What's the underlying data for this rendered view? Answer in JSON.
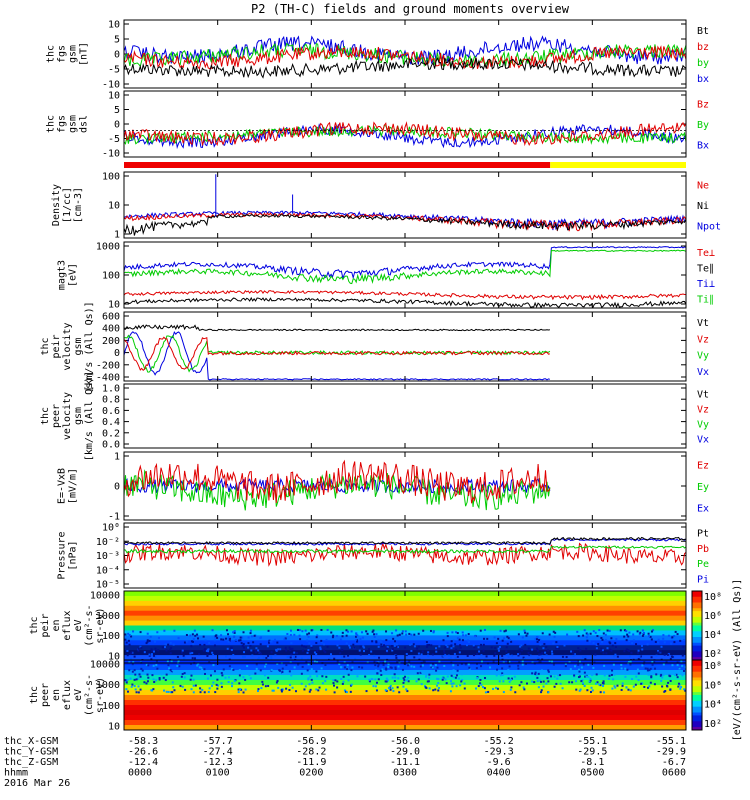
{
  "title": "P2 (TH-C) fields and ground moments overview",
  "chart_data": {
    "type": "line",
    "title": "P2 (TH-C) fields and ground moments overview",
    "x_ticks": [
      "0000",
      "0100",
      "0200",
      "0300",
      "0400",
      "0500",
      "0600"
    ],
    "x_range_hours": [
      0,
      6
    ],
    "ephemeris": {
      "rows": [
        {
          "label": "thc_X-GSM",
          "values": [
            "-58.3",
            "-57.7",
            "-56.9",
            "-56.0",
            "-55.2",
            "-55.1",
            "-55.1"
          ]
        },
        {
          "label": "thc_Y-GSM",
          "values": [
            "-26.6",
            "-27.4",
            "-28.2",
            "-29.0",
            "-29.3",
            "-29.5",
            "-29.9"
          ]
        },
        {
          "label": "thc_Z-GSM",
          "values": [
            "-12.4",
            "-12.3",
            "-11.9",
            "-11.1",
            "-9.6",
            "-8.1",
            "-6.7"
          ]
        },
        {
          "label": "hhmm",
          "values": [
            "0000",
            "0100",
            "0200",
            "0300",
            "0400",
            "0500",
            "0600"
          ]
        }
      ],
      "date": "2016 Mar 26"
    },
    "panels": [
      {
        "id": "fgs",
        "ylabel": [
          "thc",
          "fgs",
          "gsm",
          "[nT]"
        ],
        "ylim": [
          -10,
          10
        ],
        "yticks": [
          "10",
          "5",
          "0",
          "-5",
          "-10"
        ],
        "legend": [
          {
            "name": "Bt",
            "color": "#000000"
          },
          {
            "name": "bz",
            "color": "#e00000"
          },
          {
            "name": "by",
            "color": "#00cc00"
          },
          {
            "name": "bx",
            "color": "#0000e0"
          }
        ]
      },
      {
        "id": "fgs-dsl",
        "ylabel": [
          "thc",
          "fgs",
          "gsm",
          "dsl"
        ],
        "ylim": [
          -15,
          10
        ],
        "yticks": [
          "10",
          "5",
          "0",
          "-5",
          "-10"
        ],
        "legend": [
          {
            "name": "Bz",
            "color": "#e00000"
          },
          {
            "name": "By",
            "color": "#00cc00"
          },
          {
            "name": "Bx",
            "color": "#0000e0"
          }
        ]
      },
      {
        "id": "density",
        "ylabel": [
          "Density",
          "[1/cc]",
          "[cm-3]"
        ],
        "scale": "log",
        "yticks": [
          "100",
          "10",
          "1"
        ],
        "legend": [
          {
            "name": "Ne",
            "color": "#e00000"
          },
          {
            "name": "Ni",
            "color": "#000000"
          },
          {
            "name": "Npot",
            "color": "#0000e0"
          }
        ]
      },
      {
        "id": "temperature",
        "ylabel": [
          "magt3",
          "[eV]"
        ],
        "scale": "log",
        "yticks": [
          "1000",
          "100",
          "10"
        ],
        "legend": [
          {
            "name": "Te⊥",
            "color": "#e00000"
          },
          {
            "name": "Te∥",
            "color": "#000000"
          },
          {
            "name": "Ti⊥",
            "color": "#0000e0"
          },
          {
            "name": "Ti∥",
            "color": "#00cc00"
          }
        ]
      },
      {
        "id": "peir-velocity",
        "ylabel": [
          "thc",
          "peir",
          "velocity",
          "gsm",
          "[km/s (All Qs)]"
        ],
        "ylim": [
          -400,
          600
        ],
        "yticks": [
          "600",
          "400",
          "200",
          "0",
          "-200",
          "-400"
        ],
        "legend": [
          {
            "name": "Vt",
            "color": "#000000"
          },
          {
            "name": "Vz",
            "color": "#e00000"
          },
          {
            "name": "Vy",
            "color": "#00cc00"
          },
          {
            "name": "Vx",
            "color": "#0000e0"
          }
        ]
      },
      {
        "id": "peer-velocity",
        "ylabel": [
          "thc",
          "peer",
          "velocity",
          "gsm",
          "[km/s (All Qs)]"
        ],
        "ylim": [
          0,
          1
        ],
        "yticks": [
          "1.0",
          "0.8",
          "0.6",
          "0.4",
          "0.2",
          "0.0"
        ],
        "legend": [
          {
            "name": "Vt",
            "color": "#000000"
          },
          {
            "name": "Vz",
            "color": "#e00000"
          },
          {
            "name": "Vy",
            "color": "#00cc00"
          },
          {
            "name": "Vx",
            "color": "#0000e0"
          }
        ]
      },
      {
        "id": "efield",
        "ylabel": [
          "E=-VxB",
          "[mV/m]"
        ],
        "ylim": [
          -1.5,
          1.5
        ],
        "yticks": [
          "1",
          "0",
          "-1"
        ],
        "legend": [
          {
            "name": "Ez",
            "color": "#e00000"
          },
          {
            "name": "Ey",
            "color": "#00cc00"
          },
          {
            "name": "Ex",
            "color": "#0000e0"
          }
        ]
      },
      {
        "id": "pressure",
        "ylabel": [
          "Pressure",
          "[nPa]"
        ],
        "scale": "log",
        "yticks": [
          "10⁰",
          "10⁻²",
          "10⁻³",
          "10⁻⁴",
          "10⁻⁵"
        ],
        "legend": [
          {
            "name": "Pt",
            "color": "#000000"
          },
          {
            "name": "Pb",
            "color": "#e00000"
          },
          {
            "name": "Pe",
            "color": "#00cc00"
          },
          {
            "name": "Pi",
            "color": "#0000e0"
          }
        ]
      },
      {
        "id": "peir-spectrogram",
        "type": "heatmap",
        "ylabel": [
          "thc",
          "peir",
          "en",
          "eflux",
          "eV",
          "(cm²-s-",
          "sr-eV)"
        ],
        "yticks": [
          "10000",
          "1000",
          "100",
          "10"
        ]
      },
      {
        "id": "peer-spectrogram",
        "type": "heatmap",
        "ylabel": [
          "thc",
          "peer",
          "en",
          "eflux",
          "eV",
          "(cm²-s-",
          "sr-eV)"
        ],
        "yticks": [
          "10000",
          "1000",
          "100",
          "10"
        ]
      }
    ],
    "colorbar": {
      "label": "[eV/(cm²-s-sr-eV) (All Qs)]",
      "ticks_upper": [
        "10⁸",
        "10⁶",
        "10⁴",
        "10²"
      ],
      "ticks_lower": [
        "10⁸",
        "10⁶",
        "10⁴",
        "10²"
      ]
    },
    "mode_bar": {
      "segments": [
        {
          "from_hour": 0,
          "to_hour": 4.55,
          "color": "#ee0000"
        },
        {
          "from_hour": 4.55,
          "to_hour": 6,
          "color": "#ffff00"
        }
      ]
    }
  }
}
